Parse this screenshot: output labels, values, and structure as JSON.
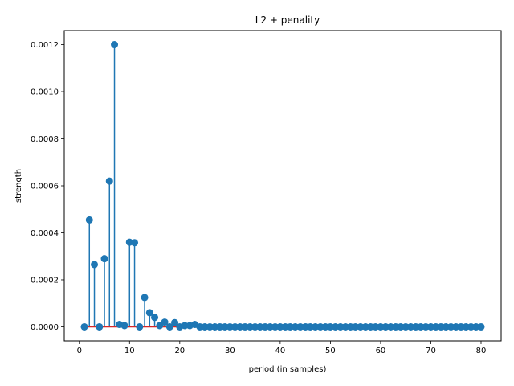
{
  "chart_data": {
    "type": "stem",
    "title": "L2 + penality",
    "xlabel": "period (in samples)",
    "ylabel": "strength",
    "xlim": [
      -3.0,
      84.0
    ],
    "ylim": [
      -6e-05,
      0.00126
    ],
    "xticks": [
      0,
      10,
      20,
      30,
      40,
      50,
      60,
      70,
      80
    ],
    "yticks": [
      0.0,
      0.0002,
      0.0004,
      0.0006,
      0.0008,
      0.001,
      0.0012
    ],
    "ytick_labels": [
      "0.0000",
      "0.0002",
      "0.0004",
      "0.0006",
      "0.0008",
      "0.0010",
      "0.0012"
    ],
    "grid": false,
    "series": [
      {
        "marker_color": "#1f77b4",
        "stem_color": "#1f77b4",
        "baseline_color": "#d62728",
        "x": [
          1,
          2,
          3,
          4,
          5,
          6,
          7,
          8,
          9,
          10,
          11,
          12,
          13,
          14,
          15,
          16,
          17,
          18,
          19,
          20,
          21,
          22,
          23,
          24,
          25,
          26,
          27,
          28,
          29,
          30,
          31,
          32,
          33,
          34,
          35,
          36,
          37,
          38,
          39,
          40,
          41,
          42,
          43,
          44,
          45,
          46,
          47,
          48,
          49,
          50,
          51,
          52,
          53,
          54,
          55,
          56,
          57,
          58,
          59,
          60,
          61,
          62,
          63,
          64,
          65,
          66,
          67,
          68,
          69,
          70,
          71,
          72,
          73,
          74,
          75,
          76,
          77,
          78,
          79,
          80
        ],
        "y": [
          0.0,
          0.000455,
          0.000265,
          0.0,
          0.00029,
          0.00062,
          0.0012,
          1e-05,
          5e-06,
          0.00036,
          0.000358,
          0.0,
          0.000125,
          6e-05,
          4e-05,
          5e-06,
          2e-05,
          0.0,
          1.8e-05,
          0.0,
          5e-06,
          5e-06,
          1e-05,
          0.0,
          0.0,
          0.0,
          0.0,
          0.0,
          0.0,
          0.0,
          0.0,
          0.0,
          0.0,
          0.0,
          0.0,
          0.0,
          0.0,
          0.0,
          0.0,
          0.0,
          0.0,
          0.0,
          0.0,
          0.0,
          0.0,
          0.0,
          0.0,
          0.0,
          0.0,
          0.0,
          0.0,
          0.0,
          0.0,
          0.0,
          0.0,
          0.0,
          0.0,
          0.0,
          0.0,
          0.0,
          0.0,
          0.0,
          0.0,
          0.0,
          0.0,
          0.0,
          0.0,
          0.0,
          0.0,
          0.0,
          0.0,
          0.0,
          0.0,
          0.0,
          0.0,
          0.0,
          0.0,
          0.0,
          0.0,
          0.0
        ]
      }
    ]
  }
}
